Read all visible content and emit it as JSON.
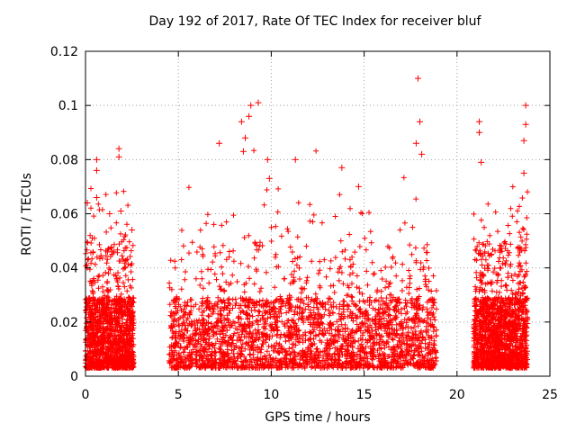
{
  "chart_data": {
    "type": "scatter",
    "title": "Day 192 of 2017, Rate Of TEC Index for receiver bluf",
    "xlabel": "GPS time / hours",
    "ylabel": "ROTI / TECUs",
    "xlim": [
      0,
      25
    ],
    "ylim": [
      0,
      0.12
    ],
    "xticks": [
      "0",
      "5",
      "10",
      "15",
      "20",
      "25"
    ],
    "yticks": [
      "0",
      "0.02",
      "0.04",
      "0.06",
      "0.08",
      "0.1",
      "0.12"
    ],
    "grid": true,
    "marker": "+",
    "color": "#ff0000",
    "segments": [
      {
        "x": [
          0.0,
          2.6
        ]
      },
      {
        "x": [
          4.5,
          18.9
        ]
      },
      {
        "x": [
          20.9,
          23.8
        ]
      }
    ],
    "notable_points": [
      {
        "x": 0.1,
        "y": 0.064
      },
      {
        "x": 0.6,
        "y": 0.08
      },
      {
        "x": 0.6,
        "y": 0.076
      },
      {
        "x": 0.6,
        "y": 0.066
      },
      {
        "x": 1.3,
        "y": 0.06
      },
      {
        "x": 1.8,
        "y": 0.084
      },
      {
        "x": 1.8,
        "y": 0.081
      },
      {
        "x": 1.9,
        "y": 0.061
      },
      {
        "x": 2.5,
        "y": 0.054
      },
      {
        "x": 8.4,
        "y": 0.094
      },
      {
        "x": 8.6,
        "y": 0.088
      },
      {
        "x": 8.5,
        "y": 0.083
      },
      {
        "x": 8.9,
        "y": 0.1
      },
      {
        "x": 8.8,
        "y": 0.096
      },
      {
        "x": 9.3,
        "y": 0.101
      },
      {
        "x": 9.8,
        "y": 0.08
      },
      {
        "x": 9.9,
        "y": 0.073
      },
      {
        "x": 7.2,
        "y": 0.086
      },
      {
        "x": 11.3,
        "y": 0.08
      },
      {
        "x": 13.8,
        "y": 0.077
      },
      {
        "x": 14.7,
        "y": 0.07
      },
      {
        "x": 17.9,
        "y": 0.11
      },
      {
        "x": 18.0,
        "y": 0.094
      },
      {
        "x": 17.8,
        "y": 0.086
      },
      {
        "x": 18.1,
        "y": 0.082
      },
      {
        "x": 21.2,
        "y": 0.094
      },
      {
        "x": 21.2,
        "y": 0.09
      },
      {
        "x": 21.3,
        "y": 0.079
      },
      {
        "x": 23.7,
        "y": 0.1
      },
      {
        "x": 23.7,
        "y": 0.093
      },
      {
        "x": 23.6,
        "y": 0.087
      },
      {
        "x": 23.6,
        "y": 0.075
      }
    ]
  }
}
